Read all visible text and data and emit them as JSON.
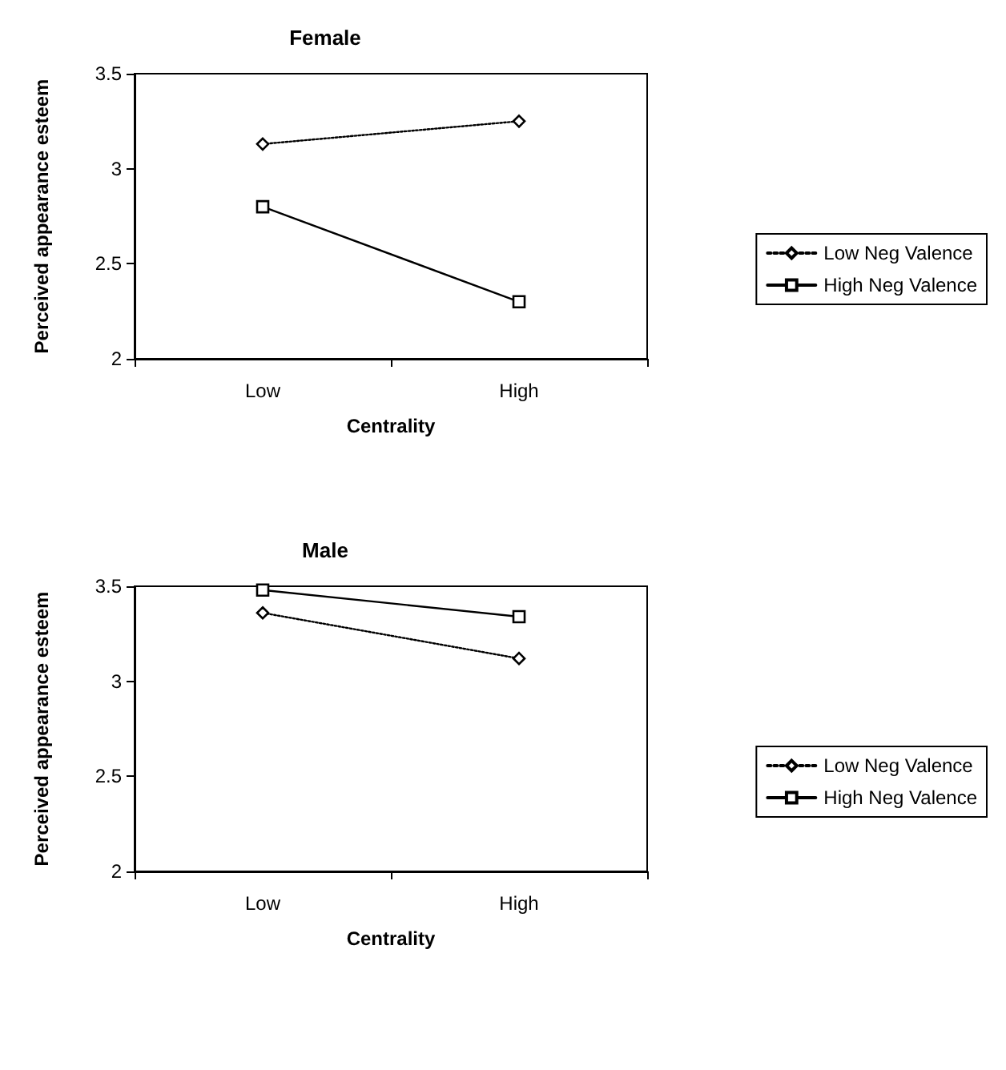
{
  "chart_data": [
    {
      "type": "line",
      "title": "Female",
      "xlabel": "Centrality",
      "ylabel": "Perceived appearance esteem",
      "categories": [
        "Low",
        "High"
      ],
      "series": [
        {
          "name": "Low Neg Valence",
          "color": "#000000",
          "marker": "diamond",
          "line_style": "dotted",
          "values": [
            3.13,
            3.25
          ]
        },
        {
          "name": "High Neg Valence",
          "color": "#000000",
          "marker": "square",
          "line_style": "solid",
          "values": [
            2.8,
            2.3
          ]
        }
      ],
      "ylim": [
        2,
        3.5
      ],
      "yticks": [
        2,
        2.5,
        3,
        3.5
      ],
      "grid": false,
      "legend": "right"
    },
    {
      "type": "line",
      "title": "Male",
      "xlabel": "Centrality",
      "ylabel": "Perceived appearance esteem",
      "categories": [
        "Low",
        "High"
      ],
      "series": [
        {
          "name": "Low Neg Valence",
          "color": "#000000",
          "marker": "diamond",
          "line_style": "dotted",
          "values": [
            3.36,
            3.12
          ]
        },
        {
          "name": "High Neg Valence",
          "color": "#000000",
          "marker": "square",
          "line_style": "solid",
          "values": [
            3.48,
            3.34
          ]
        }
      ],
      "ylim": [
        2,
        3.5
      ],
      "yticks": [
        2,
        2.5,
        3,
        3.5
      ],
      "grid": false,
      "legend": "right"
    }
  ]
}
